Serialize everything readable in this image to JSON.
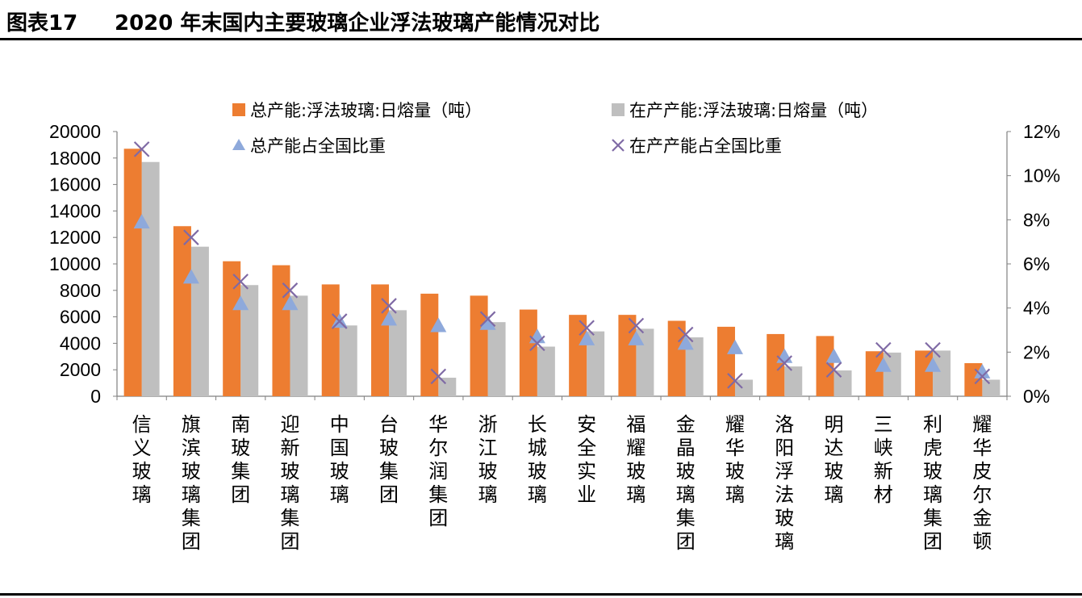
{
  "title": {
    "label": "图表17",
    "text": "2020 年末国内主要玻璃企业浮法玻璃产能情况对比"
  },
  "chart_data": {
    "type": "bar",
    "categories": [
      "信义玻璃",
      "旗滨玻璃集团",
      "南玻集团",
      "迎新玻璃集团",
      "中国玻璃",
      "台玻集团",
      "华尔润集团",
      "浙江玻璃",
      "长城玻璃",
      "安全实业",
      "福耀玻璃",
      "金晶玻璃集团",
      "耀华玻璃",
      "洛阳浮法玻璃",
      "明达玻璃",
      "三峡新材",
      "利虎玻璃集团",
      "耀华皮尔金顿"
    ],
    "series": [
      {
        "name": "总产能:浮法玻璃:日熔量（吨）",
        "kind": "bar",
        "axis": "left",
        "color": "#ED7D31",
        "values": [
          18700,
          12850,
          10200,
          9900,
          8450,
          8450,
          7750,
          7600,
          6550,
          6150,
          6150,
          5700,
          5250,
          4700,
          4550,
          3400,
          3450,
          2500
        ]
      },
      {
        "name": "在产产能:浮法玻璃:日熔量（吨）",
        "kind": "bar",
        "axis": "left",
        "color": "#BFBFBF",
        "values": [
          17700,
          11300,
          8400,
          7600,
          5350,
          6500,
          1400,
          5600,
          3750,
          4900,
          5100,
          4450,
          1250,
          2250,
          1950,
          3300,
          3450,
          1250
        ]
      },
      {
        "name": "总产能占全国比重",
        "kind": "marker",
        "marker": "triangle",
        "axis": "right",
        "color": "#8EA9DB",
        "values": [
          0.079,
          0.054,
          0.042,
          0.042,
          0.034,
          0.035,
          0.032,
          0.033,
          0.027,
          0.026,
          0.026,
          0.024,
          0.022,
          0.018,
          0.018,
          0.014,
          0.014,
          0.011
        ]
      },
      {
        "name": "在产产能占全国比重",
        "kind": "marker",
        "marker": "x",
        "axis": "right",
        "color": "#7F6AA5",
        "values": [
          0.112,
          0.072,
          0.052,
          0.048,
          0.034,
          0.041,
          0.009,
          0.035,
          0.024,
          0.031,
          0.032,
          0.028,
          0.007,
          0.015,
          0.012,
          0.021,
          0.021,
          0.009
        ]
      }
    ],
    "y_left": {
      "min": 0,
      "max": 20000,
      "ticks": [
        "0",
        "2000",
        "4000",
        "6000",
        "8000",
        "10000",
        "12000",
        "14000",
        "16000",
        "18000",
        "20000"
      ]
    },
    "y_right": {
      "min": 0,
      "max": 0.12,
      "ticks": [
        "0%",
        "2%",
        "4%",
        "6%",
        "8%",
        "10%",
        "12%"
      ]
    },
    "grid": false,
    "legend": "top"
  }
}
